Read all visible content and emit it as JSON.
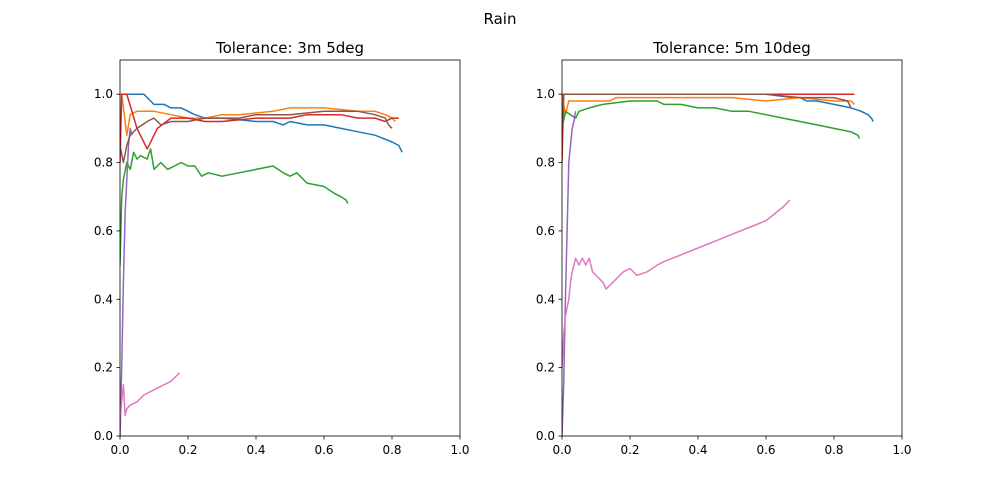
{
  "figure": {
    "suptitle": "Rain"
  },
  "chart_data": [
    {
      "type": "line",
      "title": "Tolerance: 3m 5deg",
      "xlabel": "",
      "ylabel": "",
      "xlim": [
        0,
        1
      ],
      "ylim": [
        0,
        1.1
      ],
      "xticks": [
        "0.0",
        "0.2",
        "0.4",
        "0.6",
        "0.8",
        "1.0"
      ],
      "yticks": [
        "0.0",
        "0.2",
        "0.4",
        "0.6",
        "0.8",
        "1.0"
      ],
      "grid": false,
      "series": [
        {
          "color": "#1f77b4",
          "points": [
            [
              0,
              1.0
            ],
            [
              0.005,
              1.0
            ],
            [
              0.02,
              1.0
            ],
            [
              0.06,
              1.0
            ],
            [
              0.07,
              1.0
            ],
            [
              0.1,
              0.97
            ],
            [
              0.13,
              0.97
            ],
            [
              0.15,
              0.96
            ],
            [
              0.18,
              0.96
            ],
            [
              0.22,
              0.94
            ],
            [
              0.25,
              0.93
            ],
            [
              0.3,
              0.93
            ],
            [
              0.4,
              0.92
            ],
            [
              0.45,
              0.92
            ],
            [
              0.48,
              0.91
            ],
            [
              0.5,
              0.92
            ],
            [
              0.55,
              0.91
            ],
            [
              0.6,
              0.91
            ],
            [
              0.65,
              0.9
            ],
            [
              0.7,
              0.89
            ],
            [
              0.75,
              0.88
            ],
            [
              0.8,
              0.86
            ],
            [
              0.82,
              0.85
            ],
            [
              0.83,
              0.83
            ]
          ]
        },
        {
          "color": "#ff7f0e",
          "points": [
            [
              0,
              1.0
            ],
            [
              0.005,
              1.0
            ],
            [
              0.02,
              0.88
            ],
            [
              0.03,
              0.94
            ],
            [
              0.05,
              0.95
            ],
            [
              0.08,
              0.95
            ],
            [
              0.1,
              0.95
            ],
            [
              0.15,
              0.94
            ],
            [
              0.2,
              0.93
            ],
            [
              0.25,
              0.93
            ],
            [
              0.3,
              0.94
            ],
            [
              0.35,
              0.94
            ],
            [
              0.45,
              0.95
            ],
            [
              0.5,
              0.96
            ],
            [
              0.55,
              0.96
            ],
            [
              0.6,
              0.96
            ],
            [
              0.7,
              0.95
            ],
            [
              0.75,
              0.95
            ],
            [
              0.78,
              0.94
            ],
            [
              0.8,
              0.93
            ],
            [
              0.81,
              0.92
            ]
          ]
        },
        {
          "color": "#2ca02c",
          "points": [
            [
              0,
              0.5
            ],
            [
              0.005,
              0.7
            ],
            [
              0.01,
              0.75
            ],
            [
              0.02,
              0.8
            ],
            [
              0.03,
              0.78
            ],
            [
              0.04,
              0.83
            ],
            [
              0.05,
              0.81
            ],
            [
              0.06,
              0.82
            ],
            [
              0.08,
              0.81
            ],
            [
              0.09,
              0.84
            ],
            [
              0.1,
              0.78
            ],
            [
              0.12,
              0.8
            ],
            [
              0.14,
              0.78
            ],
            [
              0.16,
              0.79
            ],
            [
              0.18,
              0.8
            ],
            [
              0.2,
              0.79
            ],
            [
              0.22,
              0.79
            ],
            [
              0.24,
              0.76
            ],
            [
              0.26,
              0.77
            ],
            [
              0.3,
              0.76
            ],
            [
              0.35,
              0.77
            ],
            [
              0.4,
              0.78
            ],
            [
              0.45,
              0.79
            ],
            [
              0.48,
              0.77
            ],
            [
              0.5,
              0.76
            ],
            [
              0.52,
              0.77
            ],
            [
              0.55,
              0.74
            ],
            [
              0.6,
              0.73
            ],
            [
              0.63,
              0.71
            ],
            [
              0.65,
              0.7
            ],
            [
              0.665,
              0.69
            ],
            [
              0.67,
              0.68
            ]
          ]
        },
        {
          "color": "#d62728",
          "points": [
            [
              0,
              0.8
            ],
            [
              0.005,
              1.0
            ],
            [
              0.02,
              1.0
            ],
            [
              0.05,
              0.9
            ],
            [
              0.08,
              0.84
            ],
            [
              0.11,
              0.9
            ],
            [
              0.15,
              0.93
            ],
            [
              0.2,
              0.93
            ],
            [
              0.25,
              0.92
            ],
            [
              0.3,
              0.92
            ],
            [
              0.4,
              0.93
            ],
            [
              0.5,
              0.93
            ],
            [
              0.55,
              0.94
            ],
            [
              0.6,
              0.94
            ],
            [
              0.65,
              0.94
            ],
            [
              0.7,
              0.93
            ],
            [
              0.75,
              0.93
            ],
            [
              0.78,
              0.92
            ],
            [
              0.8,
              0.93
            ],
            [
              0.82,
              0.93
            ]
          ]
        },
        {
          "color": "#9467bd",
          "points": [
            [
              0,
              0.0
            ],
            [
              0.005,
              0.2
            ],
            [
              0.01,
              0.45
            ],
            [
              0.015,
              0.65
            ],
            [
              0.02,
              0.75
            ],
            [
              0.025,
              0.85
            ],
            [
              0.03,
              0.9
            ],
            [
              0.035,
              0.88
            ]
          ]
        },
        {
          "color": "#8c564b",
          "points": [
            [
              0,
              0.85
            ],
            [
              0.01,
              0.8
            ],
            [
              0.02,
              0.85
            ],
            [
              0.03,
              0.88
            ],
            [
              0.05,
              0.9
            ],
            [
              0.08,
              0.92
            ],
            [
              0.1,
              0.93
            ],
            [
              0.12,
              0.91
            ],
            [
              0.15,
              0.92
            ],
            [
              0.2,
              0.92
            ],
            [
              0.25,
              0.93
            ],
            [
              0.3,
              0.93
            ],
            [
              0.35,
              0.93
            ],
            [
              0.4,
              0.94
            ],
            [
              0.5,
              0.94
            ],
            [
              0.6,
              0.95
            ],
            [
              0.7,
              0.95
            ],
            [
              0.75,
              0.94
            ],
            [
              0.78,
              0.93
            ],
            [
              0.79,
              0.91
            ],
            [
              0.8,
              0.9
            ]
          ]
        },
        {
          "color": "#e377c2",
          "points": [
            [
              0,
              0.05
            ],
            [
              0.005,
              0.1
            ],
            [
              0.01,
              0.15
            ],
            [
              0.015,
              0.06
            ],
            [
              0.02,
              0.08
            ],
            [
              0.03,
              0.09
            ],
            [
              0.05,
              0.1
            ],
            [
              0.07,
              0.12
            ],
            [
              0.09,
              0.13
            ],
            [
              0.11,
              0.14
            ],
            [
              0.13,
              0.15
            ],
            [
              0.15,
              0.16
            ],
            [
              0.17,
              0.18
            ],
            [
              0.175,
              0.185
            ]
          ]
        }
      ]
    },
    {
      "type": "line",
      "title": "Tolerance: 5m 10deg",
      "xlabel": "",
      "ylabel": "",
      "xlim": [
        0,
        1
      ],
      "ylim": [
        0,
        1.1
      ],
      "xticks": [
        "0.0",
        "0.2",
        "0.4",
        "0.6",
        "0.8",
        "1.0"
      ],
      "yticks": [
        "0.0",
        "0.2",
        "0.4",
        "0.6",
        "0.8",
        "1.0"
      ],
      "grid": false,
      "series": [
        {
          "color": "#1f77b4",
          "points": [
            [
              0,
              1.0
            ],
            [
              0.02,
              1.0
            ],
            [
              0.1,
              1.0
            ],
            [
              0.3,
              1.0
            ],
            [
              0.6,
              1.0
            ],
            [
              0.68,
              0.99
            ],
            [
              0.7,
              0.99
            ],
            [
              0.72,
              0.98
            ],
            [
              0.75,
              0.98
            ],
            [
              0.8,
              0.97
            ],
            [
              0.85,
              0.96
            ],
            [
              0.88,
              0.95
            ],
            [
              0.9,
              0.94
            ],
            [
              0.91,
              0.93
            ],
            [
              0.915,
              0.92
            ]
          ]
        },
        {
          "color": "#ff7f0e",
          "points": [
            [
              0,
              1.0
            ],
            [
              0.01,
              0.94
            ],
            [
              0.02,
              0.98
            ],
            [
              0.04,
              0.98
            ],
            [
              0.1,
              0.98
            ],
            [
              0.14,
              0.98
            ],
            [
              0.16,
              0.99
            ],
            [
              0.3,
              0.99
            ],
            [
              0.5,
              0.99
            ],
            [
              0.6,
              0.98
            ],
            [
              0.7,
              0.99
            ],
            [
              0.8,
              0.98
            ],
            [
              0.85,
              0.98
            ],
            [
              0.86,
              0.97
            ]
          ]
        },
        {
          "color": "#2ca02c",
          "points": [
            [
              0,
              0.9
            ],
            [
              0.01,
              0.95
            ],
            [
              0.04,
              0.93
            ],
            [
              0.05,
              0.95
            ],
            [
              0.08,
              0.96
            ],
            [
              0.12,
              0.97
            ],
            [
              0.2,
              0.98
            ],
            [
              0.25,
              0.98
            ],
            [
              0.28,
              0.98
            ],
            [
              0.3,
              0.97
            ],
            [
              0.35,
              0.97
            ],
            [
              0.4,
              0.96
            ],
            [
              0.45,
              0.96
            ],
            [
              0.5,
              0.95
            ],
            [
              0.55,
              0.95
            ],
            [
              0.6,
              0.94
            ],
            [
              0.65,
              0.93
            ],
            [
              0.7,
              0.92
            ],
            [
              0.75,
              0.91
            ],
            [
              0.8,
              0.9
            ],
            [
              0.85,
              0.89
            ],
            [
              0.87,
              0.88
            ],
            [
              0.875,
              0.87
            ]
          ]
        },
        {
          "color": "#d62728",
          "points": [
            [
              0,
              0.8
            ],
            [
              0.005,
              1.0
            ],
            [
              0.02,
              1.0
            ],
            [
              0.1,
              1.0
            ],
            [
              0.3,
              1.0
            ],
            [
              0.5,
              1.0
            ],
            [
              0.7,
              1.0
            ],
            [
              0.8,
              1.0
            ],
            [
              0.85,
              1.0
            ],
            [
              0.86,
              1.0
            ]
          ]
        },
        {
          "color": "#9467bd",
          "points": [
            [
              0,
              0.0
            ],
            [
              0.005,
              0.15
            ],
            [
              0.01,
              0.4
            ],
            [
              0.015,
              0.6
            ],
            [
              0.02,
              0.8
            ],
            [
              0.03,
              0.9
            ],
            [
              0.035,
              0.92
            ],
            [
              0.04,
              0.95
            ]
          ]
        },
        {
          "color": "#8c564b",
          "points": [
            [
              0,
              0.9
            ],
            [
              0.005,
              1.0
            ],
            [
              0.1,
              1.0
            ],
            [
              0.3,
              1.0
            ],
            [
              0.5,
              1.0
            ],
            [
              0.6,
              1.0
            ],
            [
              0.7,
              0.99
            ],
            [
              0.8,
              0.99
            ],
            [
              0.84,
              0.98
            ],
            [
              0.85,
              0.96
            ]
          ]
        },
        {
          "color": "#e377c2",
          "points": [
            [
              0,
              0.2
            ],
            [
              0.005,
              0.3
            ],
            [
              0.01,
              0.35
            ],
            [
              0.02,
              0.4
            ],
            [
              0.025,
              0.45
            ],
            [
              0.03,
              0.48
            ],
            [
              0.04,
              0.52
            ],
            [
              0.05,
              0.5
            ],
            [
              0.06,
              0.52
            ],
            [
              0.07,
              0.5
            ],
            [
              0.08,
              0.52
            ],
            [
              0.09,
              0.48
            ],
            [
              0.1,
              0.47
            ],
            [
              0.12,
              0.45
            ],
            [
              0.13,
              0.43
            ],
            [
              0.15,
              0.45
            ],
            [
              0.18,
              0.48
            ],
            [
              0.2,
              0.49
            ],
            [
              0.22,
              0.47
            ],
            [
              0.25,
              0.48
            ],
            [
              0.28,
              0.5
            ],
            [
              0.3,
              0.51
            ],
            [
              0.35,
              0.53
            ],
            [
              0.4,
              0.55
            ],
            [
              0.45,
              0.57
            ],
            [
              0.5,
              0.59
            ],
            [
              0.55,
              0.61
            ],
            [
              0.6,
              0.63
            ],
            [
              0.65,
              0.67
            ],
            [
              0.66,
              0.68
            ],
            [
              0.67,
              0.69
            ]
          ]
        }
      ]
    }
  ]
}
